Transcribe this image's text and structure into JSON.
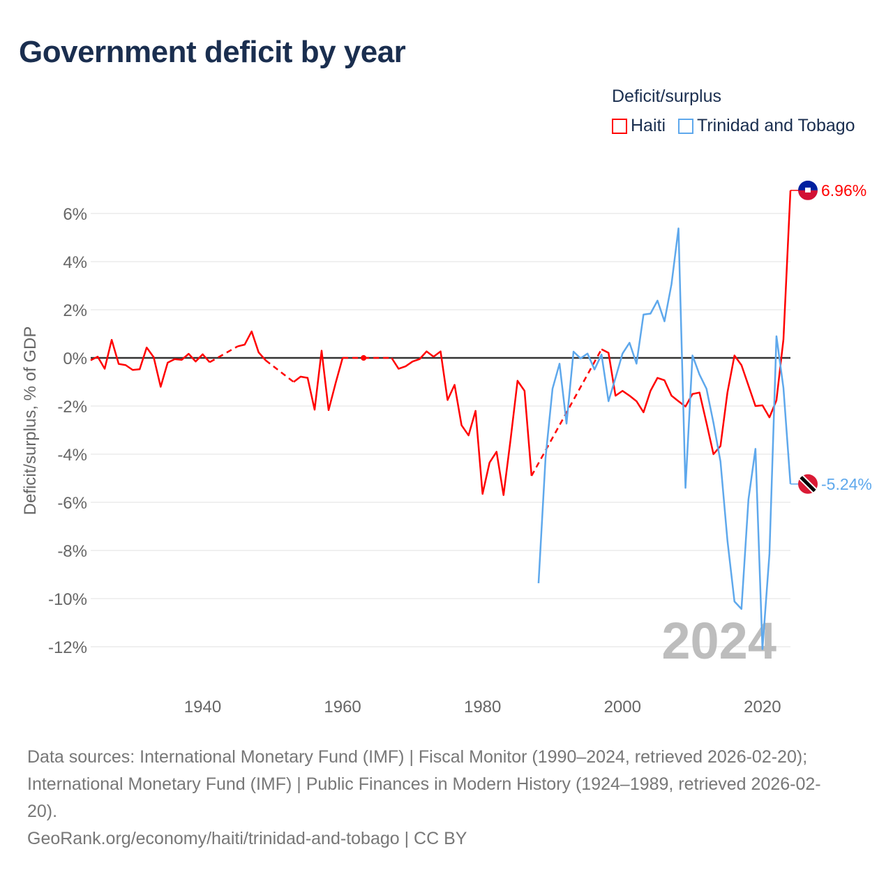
{
  "title": "Government deficit by year",
  "legend": {
    "title": "Deficit/surplus",
    "items": [
      {
        "label": "Haiti",
        "color": "#ff0000"
      },
      {
        "label": "Trinidad and Tobago",
        "color": "#5ea8ec"
      }
    ]
  },
  "watermark_year": "2024",
  "source": {
    "line1": "Data sources: International Monetary Fund (IMF) | Fiscal Monitor (1990–2024, retrieved 2026-02-20);",
    "line2": "International Monetary Fund (IMF) | Public Finances in Modern History (1924–1989, retrieved 2026-02-",
    "line3": "20).",
    "line4": "GeoRank.org/economy/haiti/trinidad-and-tobago | CC BY"
  },
  "chart_data": {
    "type": "line",
    "title": "Government deficit by year",
    "xlabel": "",
    "ylabel": "Deficit/surplus, % of GDP",
    "xlim": [
      1924,
      2024
    ],
    "ylim": [
      -13,
      7.5
    ],
    "x_ticks": [
      1940,
      1960,
      1980,
      2000,
      2020
    ],
    "y_ticks": [
      -12,
      -10,
      -8,
      -6,
      -4,
      -2,
      0,
      2,
      4,
      6
    ],
    "y_tick_labels": [
      "-12%",
      "-10%",
      "-8%",
      "-6%",
      "-4%",
      "-2%",
      "0%",
      "2%",
      "4%",
      "6%"
    ],
    "grid": true,
    "legend_position": "top-right",
    "start_year": 1924,
    "series": [
      {
        "name": "Haiti",
        "color": "#ff0000",
        "end_label": "6.96%",
        "values": [
          -0.1,
          0.05,
          -0.45,
          0.75,
          -0.25,
          -0.3,
          -0.5,
          -0.47,
          0.43,
          0.03,
          -1.2,
          -0.2,
          -0.05,
          -0.08,
          0.17,
          -0.15,
          0.15,
          -0.18,
          null,
          null,
          null,
          0.48,
          0.55,
          1.1,
          0.23,
          -0.1,
          null,
          null,
          null,
          -1.0,
          -0.78,
          -0.83,
          -2.15,
          0.3,
          -2.17,
          -1.05,
          0.0,
          null,
          null,
          0.0,
          null,
          null,
          null,
          0.0,
          -0.45,
          -0.35,
          -0.15,
          -0.05,
          0.27,
          0.05,
          0.27,
          -1.75,
          -1.12,
          -2.8,
          -3.22,
          -2.2,
          -5.65,
          -4.35,
          -3.9,
          -5.7,
          -3.4,
          -0.95,
          -1.37,
          -4.9,
          null,
          null,
          null,
          null,
          null,
          null,
          null,
          null,
          null,
          0.36,
          0.21,
          -1.57,
          -1.37,
          -1.57,
          -1.8,
          -2.26,
          -1.37,
          -0.83,
          -0.93,
          -1.57,
          -1.8,
          -2.02,
          -1.5,
          -1.44,
          -2.7,
          -4.0,
          -3.66,
          -1.43,
          0.1,
          -0.3,
          -1.15,
          -2.0,
          -1.97,
          -2.47,
          -1.76,
          0.77,
          6.96
        ]
      },
      {
        "name": "Trinidad and Tobago",
        "color": "#5ea8ec",
        "end_label": "-5.24%",
        "values": [
          null,
          null,
          null,
          null,
          null,
          null,
          null,
          null,
          null,
          null,
          null,
          null,
          null,
          null,
          null,
          null,
          null,
          null,
          null,
          null,
          null,
          null,
          null,
          null,
          null,
          null,
          null,
          null,
          null,
          null,
          null,
          null,
          null,
          null,
          null,
          null,
          null,
          null,
          null,
          null,
          null,
          null,
          null,
          null,
          null,
          null,
          null,
          null,
          null,
          null,
          null,
          null,
          null,
          null,
          null,
          null,
          null,
          null,
          null,
          null,
          null,
          null,
          null,
          null,
          -9.36,
          -4.16,
          -1.28,
          -0.24,
          -2.73,
          0.26,
          -0.02,
          0.18,
          -0.48,
          0.14,
          -1.8,
          -0.83,
          0.18,
          0.63,
          -0.24,
          1.8,
          1.84,
          2.38,
          1.52,
          3.06,
          5.38,
          -5.4,
          0.1,
          -0.69,
          -1.28,
          -2.7,
          -4.3,
          -7.6,
          -10.12,
          -10.43,
          -5.88,
          -3.78,
          -12.1,
          -8.14,
          0.9,
          -1.25,
          -5.24
        ]
      }
    ]
  }
}
